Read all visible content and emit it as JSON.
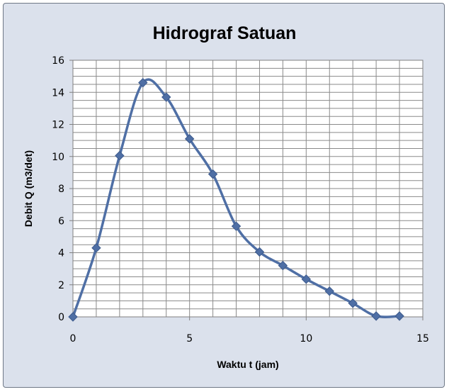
{
  "chart_data": {
    "type": "line",
    "title": "Hidrograf Satuan",
    "xlabel": "Waktu t (jam)",
    "ylabel": "Debit Q (m3/det)",
    "xlim": [
      0,
      15
    ],
    "ylim": [
      0,
      16
    ],
    "xticks": [
      0,
      5,
      10,
      15
    ],
    "yticks": [
      0,
      2,
      4,
      6,
      8,
      10,
      12,
      14,
      16
    ],
    "x_minor_step": 1,
    "y_minor_step": 0.5,
    "grid": true,
    "legend": "none",
    "smooth": true,
    "series": [
      {
        "x": [
          0,
          1,
          2,
          3,
          4,
          5,
          6,
          7,
          8,
          9,
          10,
          11,
          12,
          13,
          14
        ],
        "y": [
          0,
          4.3,
          10.05,
          14.6,
          13.7,
          11.1,
          8.9,
          5.65,
          4.05,
          3.2,
          2.35,
          1.6,
          0.85,
          0.05,
          0.05
        ],
        "color": "#4f6fa5",
        "marker": "diamond"
      }
    ]
  }
}
